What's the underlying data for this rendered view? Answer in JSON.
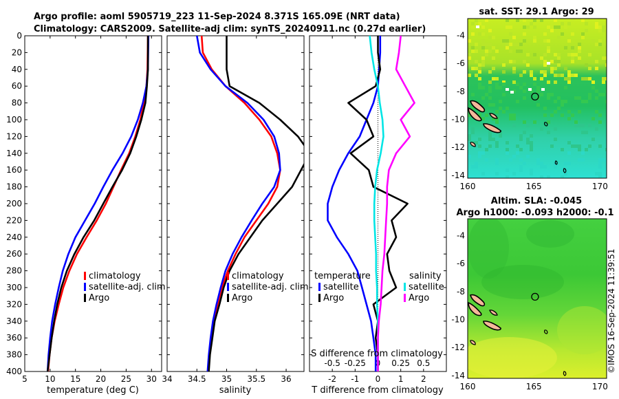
{
  "header": {
    "line1": "Argo profile: aoml 5905719_223 11-Sep-2024 8.371S 165.09E (NRT data)",
    "line2": "Climatology: CARS2009. Satellite-adj clim: synTS_20240911.nc (0.27d earlier)"
  },
  "colors": {
    "climatology": "#ff0000",
    "satellite": "#0000ff",
    "argo": "#000000",
    "salinity_satellite": "#00e5e5",
    "salinity_argo": "#ff00ff"
  },
  "chart_data": [
    {
      "id": "temperature",
      "type": "line",
      "xlabel": "temperature (deg C)",
      "ylabel": "",
      "xlim": [
        5,
        32
      ],
      "ylim": [
        400,
        0
      ],
      "xticks": [
        "5",
        "10",
        "15",
        "20",
        "25",
        "30"
      ],
      "xtick_values": [
        5,
        10,
        15,
        20,
        25,
        30
      ],
      "yticks": [
        "0",
        "20",
        "40",
        "60",
        "80",
        "100",
        "120",
        "140",
        "160",
        "180",
        "200",
        "220",
        "240",
        "260",
        "280",
        "300",
        "320",
        "340",
        "360",
        "380",
        "400"
      ],
      "ytick_values": [
        0,
        20,
        40,
        60,
        80,
        100,
        120,
        140,
        160,
        180,
        200,
        220,
        240,
        260,
        280,
        300,
        320,
        340,
        360,
        380,
        400
      ],
      "legend": [
        "climatology",
        "satellite-adj. clim",
        "Argo"
      ],
      "series": [
        {
          "name": "climatology",
          "color": "#ff0000",
          "depth": [
            0,
            40,
            60,
            80,
            100,
            120,
            140,
            160,
            180,
            200,
            220,
            240,
            260,
            280,
            300,
            320,
            340,
            360,
            380,
            400
          ],
          "values": [
            29.3,
            29.2,
            29.0,
            28.5,
            27.8,
            26.8,
            25.6,
            24.0,
            22.5,
            21.0,
            19.2,
            17.2,
            15.3,
            13.8,
            12.6,
            11.7,
            10.9,
            10.3,
            9.9,
            9.6
          ]
        },
        {
          "name": "satellite-adj. clim",
          "color": "#0000ff",
          "depth": [
            0,
            40,
            60,
            80,
            100,
            120,
            140,
            160,
            180,
            200,
            220,
            240,
            260,
            280,
            300,
            320,
            340,
            360,
            380,
            400
          ],
          "values": [
            29.4,
            29.3,
            29.0,
            28.3,
            27.3,
            26.0,
            24.3,
            22.3,
            20.5,
            18.8,
            16.9,
            15.0,
            13.6,
            12.5,
            11.7,
            11.0,
            10.4,
            10.0,
            9.7,
            9.5
          ]
        },
        {
          "name": "Argo",
          "color": "#000000",
          "depth": [
            0,
            40,
            60,
            80,
            100,
            120,
            140,
            160,
            180,
            200,
            220,
            240,
            260,
            280,
            300,
            320,
            340,
            360,
            380,
            400
          ],
          "values": [
            29.3,
            29.3,
            29.1,
            28.8,
            28.0,
            27.0,
            25.8,
            24.2,
            22.3,
            20.5,
            18.7,
            16.6,
            14.8,
            13.3,
            12.2,
            11.4,
            10.8,
            10.3,
            9.9,
            9.5
          ]
        }
      ]
    },
    {
      "id": "salinity",
      "type": "line",
      "xlabel": "salinity",
      "ylabel": "",
      "xlim": [
        34,
        36.3
      ],
      "ylim": [
        400,
        0
      ],
      "xticks": [
        "34",
        "34.5",
        "35",
        "35.5",
        "36"
      ],
      "xtick_values": [
        34,
        34.5,
        35,
        35.5,
        36
      ],
      "legend": [
        "climatology",
        "satellite-adj. clim",
        "Argo"
      ],
      "series": [
        {
          "name": "climatology",
          "color": "#ff0000",
          "depth": [
            0,
            20,
            40,
            60,
            80,
            100,
            120,
            140,
            160,
            180,
            200,
            220,
            240,
            260,
            280,
            300,
            320,
            340,
            360,
            380,
            400
          ],
          "values": [
            34.58,
            34.6,
            34.75,
            34.98,
            35.3,
            35.55,
            35.75,
            35.85,
            35.9,
            35.85,
            35.7,
            35.5,
            35.3,
            35.15,
            35.02,
            34.92,
            34.85,
            34.78,
            34.74,
            34.71,
            34.69
          ]
        },
        {
          "name": "satellite-adj. clim",
          "color": "#0000ff",
          "depth": [
            0,
            20,
            40,
            60,
            80,
            100,
            120,
            140,
            160,
            180,
            200,
            220,
            240,
            260,
            280,
            300,
            320,
            340,
            360,
            380,
            400
          ],
          "values": [
            34.5,
            34.55,
            34.73,
            34.98,
            35.35,
            35.62,
            35.8,
            35.88,
            35.9,
            35.8,
            35.6,
            35.42,
            35.25,
            35.1,
            34.98,
            34.9,
            34.83,
            34.77,
            34.73,
            34.7,
            34.68
          ]
        },
        {
          "name": "Argo",
          "color": "#000000",
          "depth": [
            0,
            20,
            40,
            60,
            80,
            100,
            120,
            140,
            160,
            180,
            200,
            220,
            240,
            260,
            280,
            300,
            320,
            340,
            360,
            380,
            400
          ],
          "values": [
            35.0,
            35.0,
            35.0,
            35.05,
            35.55,
            35.9,
            36.2,
            36.4,
            36.25,
            36.1,
            35.85,
            35.6,
            35.4,
            35.2,
            35.05,
            34.95,
            34.88,
            34.8,
            34.76,
            34.72,
            34.7
          ]
        }
      ]
    },
    {
      "id": "difference",
      "type": "line",
      "xlabel": "T difference from climatology",
      "top_xlabel": "S difference from climatology",
      "xlim": [
        -3,
        3
      ],
      "ylim": [
        400,
        0
      ],
      "xticks": [
        "-2",
        "-1",
        "0",
        "1",
        "2"
      ],
      "xtick_values": [
        -2,
        -1,
        0,
        1,
        2
      ],
      "top_xticks": [
        "-0.5",
        "-0.25",
        "0",
        "0.25",
        "0.5"
      ],
      "top_xtick_values": [
        -0.5,
        -0.25,
        0,
        0.25,
        0.5
      ],
      "top_scale": 4,
      "legend_temperature_title": "temperature",
      "legend_salinity_title": "salinity",
      "legend_temperature": [
        "satellite",
        "Argo"
      ],
      "legend_salinity": [
        "satellite",
        "Argo"
      ],
      "series": [
        {
          "name": "T satellite",
          "color": "#0000ff",
          "depth": [
            0,
            20,
            40,
            60,
            80,
            100,
            120,
            140,
            160,
            180,
            200,
            220,
            240,
            260,
            280,
            300,
            320,
            340,
            360,
            380,
            400
          ],
          "values": [
            0.1,
            0.1,
            0.05,
            0.0,
            -0.2,
            -0.5,
            -0.8,
            -1.3,
            -1.7,
            -2.0,
            -2.2,
            -2.2,
            -1.8,
            -1.3,
            -0.9,
            -0.7,
            -0.5,
            -0.3,
            -0.2,
            -0.1,
            -0.1
          ]
        },
        {
          "name": "T Argo",
          "color": "#000000",
          "depth": [
            0,
            20,
            40,
            60,
            80,
            100,
            120,
            140,
            160,
            180,
            200,
            220,
            240,
            260,
            280,
            300,
            320,
            340,
            360,
            380,
            400
          ],
          "values": [
            0.0,
            0.0,
            0.1,
            -0.1,
            -1.3,
            -0.5,
            -0.2,
            -1.2,
            -0.4,
            -0.2,
            1.3,
            0.6,
            0.8,
            0.4,
            0.5,
            0.8,
            -0.2,
            0.0,
            -0.1,
            0.0,
            0.0
          ]
        },
        {
          "name": "S satellite",
          "color": "#00e5e5",
          "depth": [
            0,
            20,
            40,
            60,
            80,
            100,
            120,
            140,
            160,
            180,
            200,
            220,
            240,
            260,
            280,
            300,
            320,
            340,
            360,
            380,
            400
          ],
          "values": [
            -0.09,
            -0.07,
            -0.04,
            0.0,
            0.02,
            0.05,
            0.06,
            0.03,
            -0.01,
            -0.03,
            -0.04,
            -0.04,
            -0.03,
            -0.02,
            -0.02,
            -0.01,
            -0.01,
            0.0,
            0.0,
            0.0,
            0.0
          ]
        },
        {
          "name": "S Argo",
          "color": "#ff00ff",
          "depth": [
            0,
            20,
            40,
            60,
            80,
            100,
            120,
            140,
            160,
            180,
            200,
            220,
            240,
            260,
            280,
            300,
            320,
            340,
            360,
            380,
            400
          ],
          "values": [
            0.25,
            0.23,
            0.2,
            0.3,
            0.4,
            0.25,
            0.35,
            0.2,
            0.12,
            0.1,
            0.1,
            0.09,
            0.08,
            0.07,
            0.05,
            0.04,
            0.03,
            0.01,
            0.0,
            0.0,
            0.0
          ]
        }
      ]
    },
    {
      "id": "map_sst",
      "type": "heatmap",
      "title": "sat. SST: 29.1 Argo: 29",
      "xlim": [
        160,
        170.5
      ],
      "ylim": [
        -14.2,
        -2.8
      ],
      "xticks": [
        "160",
        "165",
        "170"
      ],
      "xtick_values": [
        160,
        165,
        170
      ],
      "yticks": [
        "-4",
        "-6",
        "-8",
        "-10",
        "-12",
        "-14"
      ],
      "ytick_values": [
        -4,
        -6,
        -8,
        -10,
        -12,
        -14
      ],
      "profile_location": [
        165.09,
        -8.371
      ]
    },
    {
      "id": "map_sla",
      "type": "heatmap",
      "title_line1": "Altim. SLA: -0.045",
      "title_line2": "Argo h1000: -0.093 h2000: -0.1",
      "xlim": [
        160,
        170.5
      ],
      "ylim": [
        -14.2,
        -2.8
      ],
      "xticks": [
        "160",
        "165",
        "170"
      ],
      "xtick_values": [
        160,
        165,
        170
      ],
      "yticks": [
        "-4",
        "-6",
        "-8",
        "-10",
        "-12",
        "-14"
      ],
      "ytick_values": [
        -4,
        -6,
        -8,
        -10,
        -12,
        -14
      ],
      "profile_location": [
        165.09,
        -8.371
      ]
    }
  ],
  "footer": {
    "credit": "©IMOS 16-Sep-2024 11:39:51"
  }
}
